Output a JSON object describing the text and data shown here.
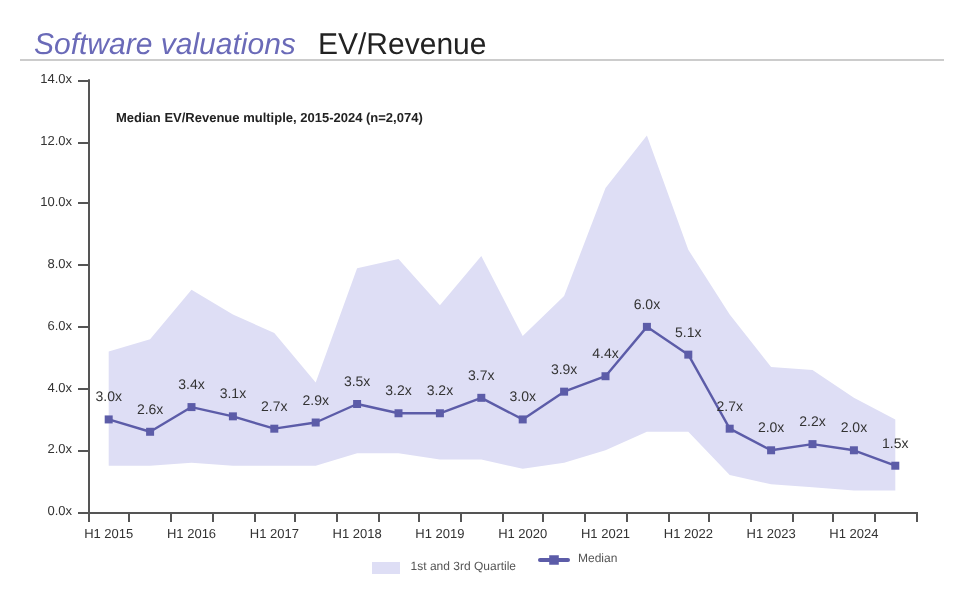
{
  "chart_data": {
    "type": "line",
    "title": "Software valuations",
    "subtitle": "EV/Revenue",
    "annotations": [
      "Median EV/Revenue multiple, 2015-2024 (n=2,074)",
      "1st and 3rd Quartile"
    ],
    "categories": [
      "H1 2015",
      null,
      "H1 2016",
      null,
      "H1 2017",
      null,
      "H1 2018",
      null,
      "H1 2019",
      null,
      "H1 2020",
      null,
      "H1 2021",
      null,
      "H1 2022",
      null,
      "H1 2023",
      null,
      "H1 2024",
      null
    ],
    "series": [
      {
        "name": "Median",
        "color": "#5c5ca8",
        "values": [
          3.0,
          2.6,
          3.4,
          3.1,
          2.7,
          2.9,
          3.5,
          3.2,
          3.2,
          3.7,
          3.0,
          3.9,
          4.4,
          6.0,
          5.1,
          2.7,
          2.0,
          2.2,
          2.0,
          1.5
        ],
        "value_labels": [
          "3.0x",
          "2.6x",
          "3.4x",
          "3.1x",
          "2.7x",
          "2.9x",
          "3.5x",
          "3.2x",
          "3.2x",
          "3.7x",
          "3.0x",
          "3.9x",
          "4.4x",
          "6.0x",
          "5.1x",
          "2.7x",
          "2.0x",
          "2.2x",
          "2.0x",
          "1.5x"
        ],
        "lower": [
          1.5,
          1.5,
          1.6,
          1.5,
          1.5,
          1.5,
          1.9,
          1.9,
          1.7,
          1.7,
          1.4,
          1.6,
          2.0,
          2.6,
          2.6,
          1.2,
          0.9,
          0.8,
          0.7,
          0.7
        ],
        "upper": [
          5.2,
          5.6,
          7.2,
          6.4,
          5.8,
          4.2,
          7.9,
          8.2,
          6.7,
          8.3,
          5.7,
          7.0,
          10.5,
          12.2,
          8.5,
          6.4,
          4.7,
          4.6,
          3.7,
          3.0
        ]
      }
    ],
    "ylim": [
      0,
      14
    ],
    "yticks": [
      {
        "value": 0,
        "label": "0.0x"
      },
      {
        "value": 2,
        "label": "2.0x"
      },
      {
        "value": 4,
        "label": "4.0x"
      },
      {
        "value": 6,
        "label": "6.0x"
      },
      {
        "value": 8,
        "label": "8.0x"
      },
      {
        "value": 10,
        "label": "10.0x"
      },
      {
        "value": 12,
        "label": "12.0x"
      },
      {
        "value": 14,
        "label": "14.0x"
      }
    ],
    "grid": false,
    "legend": "bottom",
    "marker": "square",
    "line_style": "solid"
  }
}
